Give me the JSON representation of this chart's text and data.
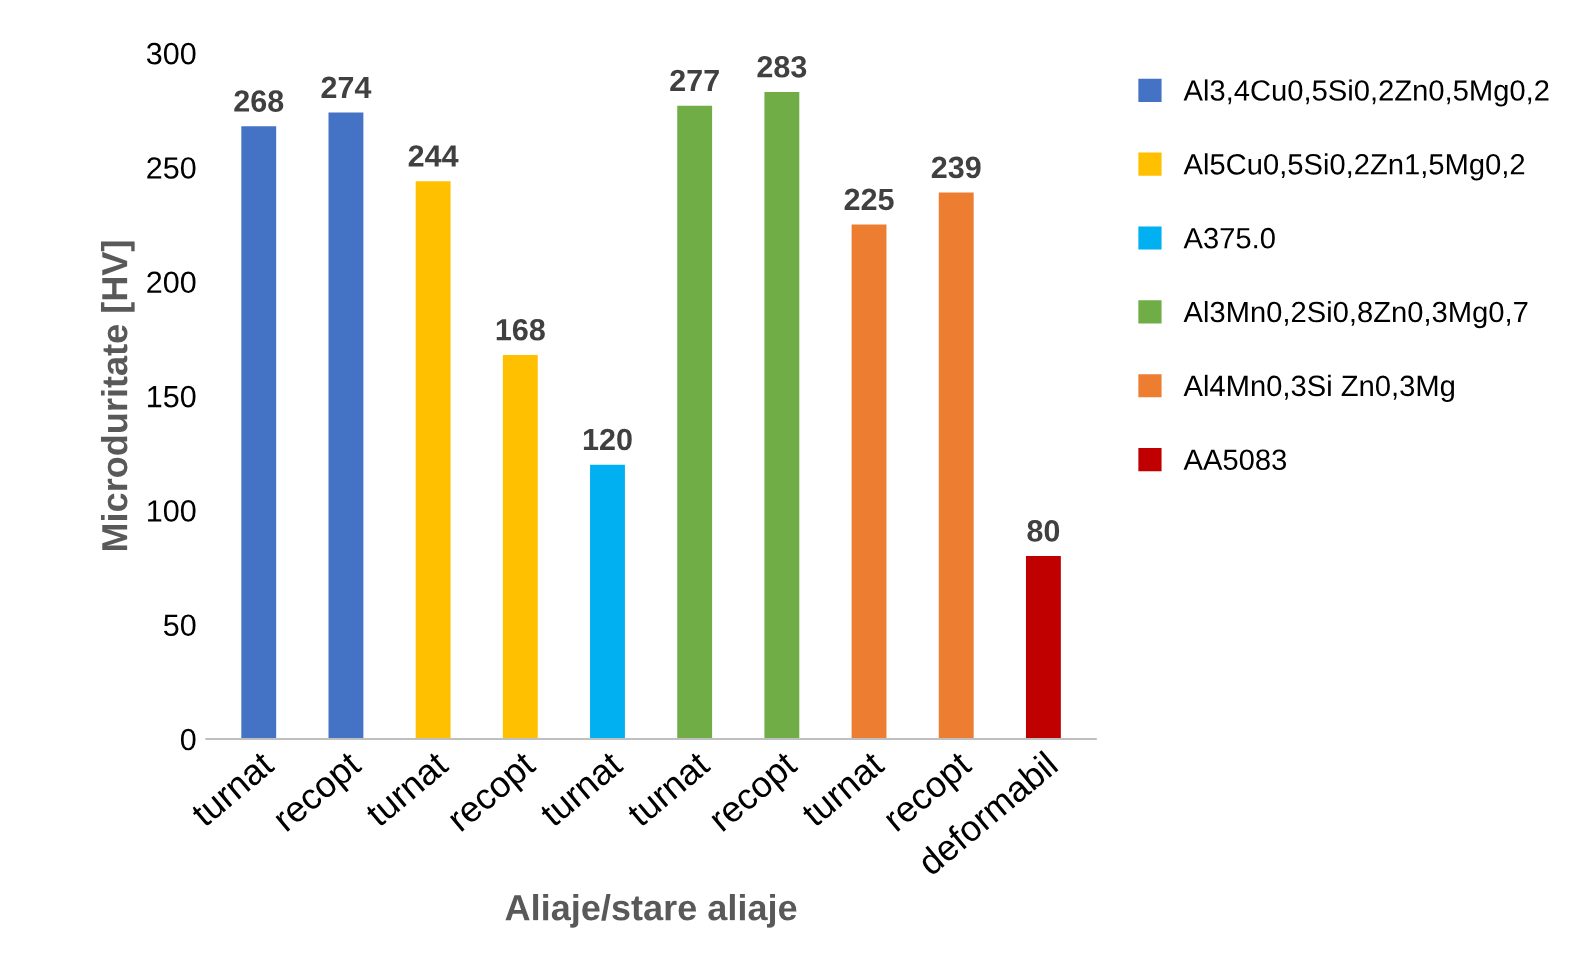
{
  "chart_data": {
    "type": "bar",
    "xlabel": "Aliaje/stare aliaje",
    "ylabel": "Microduritate [HV]",
    "categories": [
      "turnat",
      "recopt",
      "turnat",
      "recopt",
      "turnat",
      "turnat",
      "recopt",
      "turnat",
      "recopt",
      "deformabil"
    ],
    "series": [
      {
        "name": "Al3,4Cu0,5Si0,2Zn0,5Mg0,2",
        "color": "#4472c4",
        "values": [
          268,
          274,
          null,
          null,
          null,
          null,
          null,
          null,
          null,
          null
        ]
      },
      {
        "name": "Al5Cu0,5Si0,2Zn1,5Mg0,2",
        "color": "#ffc000",
        "values": [
          null,
          null,
          244,
          168,
          null,
          null,
          null,
          null,
          null,
          null
        ]
      },
      {
        "name": "A375.0",
        "color": "#00b0f0",
        "values": [
          null,
          null,
          null,
          null,
          120,
          null,
          null,
          null,
          null,
          null
        ]
      },
      {
        "name": "Al3Mn0,2Si0,8Zn0,3Mg0,7",
        "color": "#70ad47",
        "values": [
          null,
          null,
          null,
          null,
          null,
          277,
          283,
          null,
          null,
          null
        ]
      },
      {
        "name": "Al4Mn0,3Si Zn0,3Mg",
        "color": "#ed7d31",
        "values": [
          null,
          null,
          null,
          null,
          null,
          null,
          null,
          225,
          239,
          null
        ]
      },
      {
        "name": "AA5083",
        "color": "#c00000",
        "values": [
          null,
          null,
          null,
          null,
          null,
          null,
          null,
          null,
          null,
          80
        ]
      }
    ],
    "ylim": [
      0,
      300
    ],
    "yticks": [
      0,
      50,
      100,
      150,
      200,
      250,
      300
    ],
    "data_labels": true,
    "legend": "right",
    "grid": false
  }
}
